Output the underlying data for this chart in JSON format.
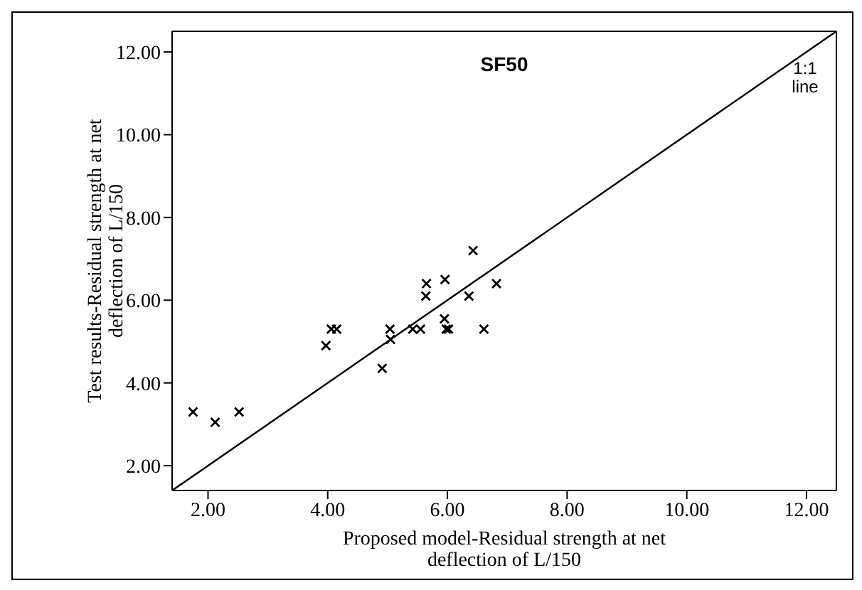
{
  "chart_data": {
    "type": "scatter",
    "title": "SF50",
    "xlabel": "Proposed model-Residual strength at net deflection of L/150",
    "ylabel": "Test results-Residual strength at net deflection of L/150",
    "x": [
      1.75,
      2.12,
      2.52,
      3.97,
      4.06,
      4.15,
      4.91,
      5.04,
      5.05,
      5.42,
      5.55,
      5.64,
      5.65,
      5.95,
      5.96,
      5.98,
      6.02,
      6.36,
      6.43,
      6.61,
      6.82
    ],
    "values": [
      3.3,
      3.05,
      3.3,
      4.9,
      5.3,
      5.3,
      4.35,
      5.3,
      5.05,
      5.3,
      5.3,
      6.1,
      6.4,
      5.55,
      6.5,
      5.3,
      5.3,
      6.1,
      7.2,
      5.3,
      6.4
    ],
    "color": "#000000",
    "marker": "cross",
    "grid": false,
    "legend": false,
    "series": [
      {
        "type": "line",
        "color": "#000000",
        "marker": "none",
        "x": [
          1.4,
          12.5
        ],
        "values": [
          1.4,
          12.5
        ]
      }
    ],
    "annotations": [
      "1:1 line"
    ],
    "xlim": [
      1.4,
      12.5
    ],
    "ylim": [
      1.4,
      12.5
    ],
    "xticks": [
      {
        "value": 2,
        "label": "2.00"
      },
      {
        "value": 4,
        "label": "4.00"
      },
      {
        "value": 6,
        "label": "6.00"
      },
      {
        "value": 8,
        "label": "8.00"
      },
      {
        "value": 10,
        "label": "10.00"
      },
      {
        "value": 12,
        "label": "12.00"
      }
    ],
    "yticks": [
      {
        "value": 2,
        "label": "2.00"
      },
      {
        "value": 4,
        "label": "4.00"
      },
      {
        "value": 6,
        "label": "6.00"
      },
      {
        "value": 8,
        "label": "8.00"
      },
      {
        "value": 10,
        "label": "10.00"
      },
      {
        "value": 12,
        "label": "12.00"
      }
    ]
  }
}
